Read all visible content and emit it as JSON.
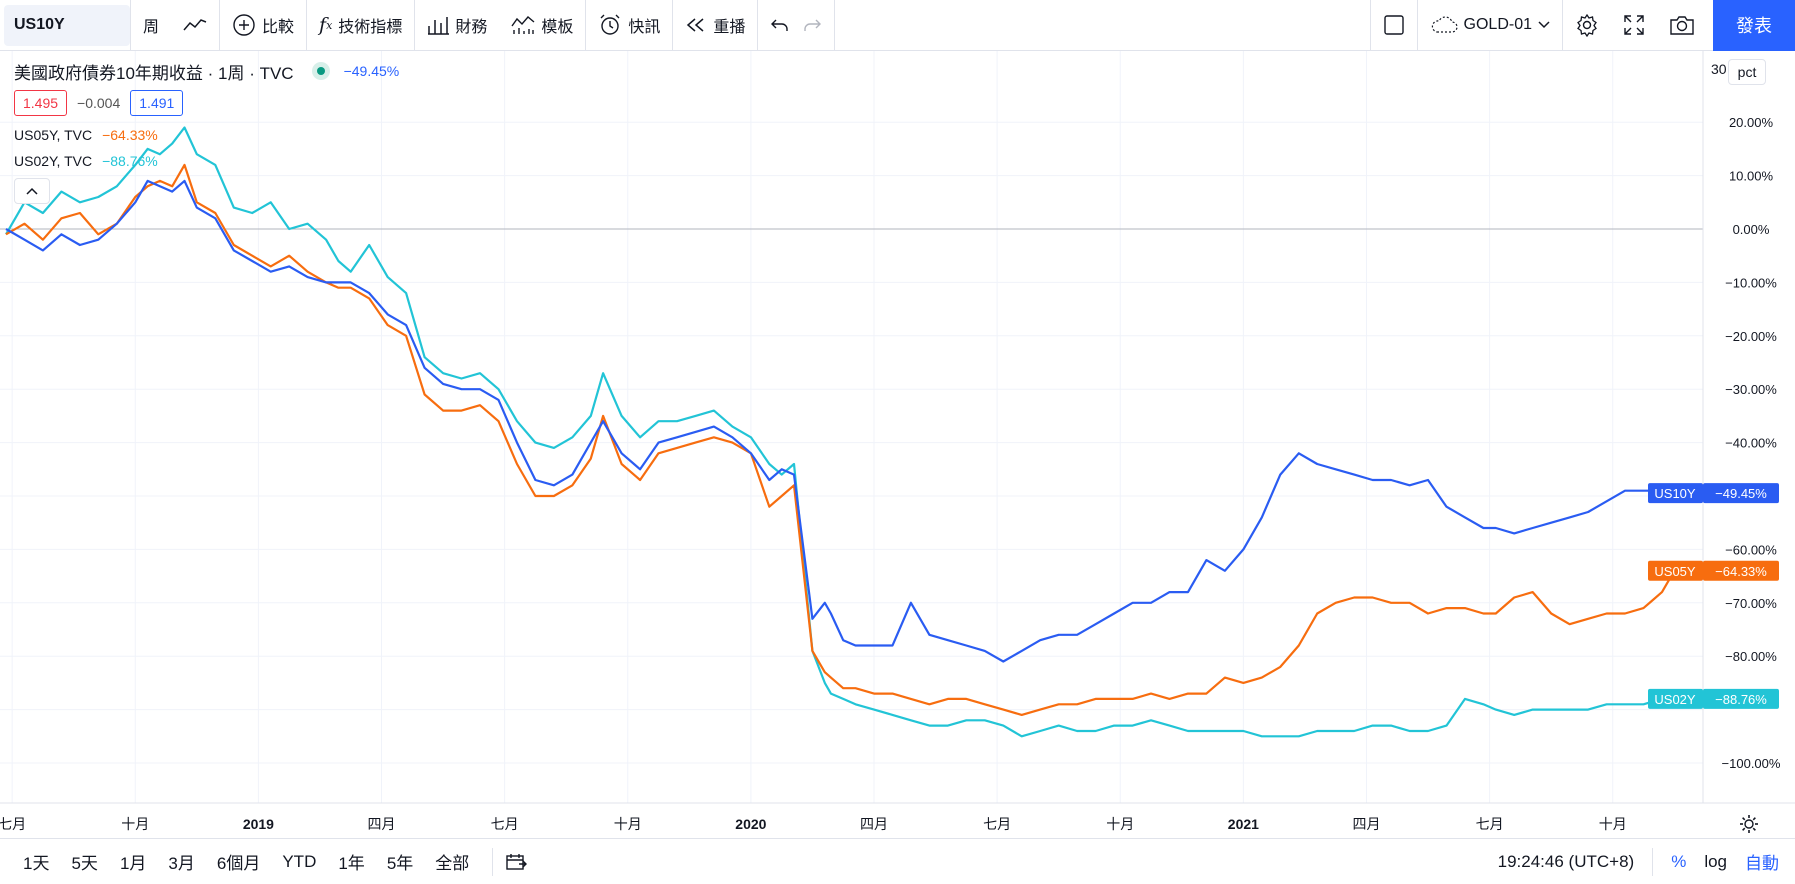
{
  "toolbar": {
    "symbol": "US10Y",
    "interval": "周",
    "compare": "比較",
    "indicators": "技術指標",
    "financials": "財務",
    "templates": "模板",
    "alerts": "快訊",
    "replay": "重播",
    "layout_name": "GOLD-01",
    "publish": "發表"
  },
  "legend": {
    "title": "美國政府債券10年期收益 · 1周 · TVC",
    "change_pct": "−49.45%",
    "bid": "1.495",
    "spread": "−0.004",
    "ask": "1.491",
    "series2_name": "US05Y, TVC",
    "series2_pct": "−64.33%",
    "series3_name": "US02Y, TVC",
    "series3_pct": "−88.76%"
  },
  "axis": {
    "top_partial": "30",
    "mode_badge": "pct",
    "yticks": [
      {
        "v": 20,
        "label": "20.00%"
      },
      {
        "v": 10,
        "label": "10.00%"
      },
      {
        "v": 0,
        "label": "0.00%"
      },
      {
        "v": -10,
        "label": "−10.00%"
      },
      {
        "v": -20,
        "label": "−20.00%"
      },
      {
        "v": -30,
        "label": "−30.00%"
      },
      {
        "v": -40,
        "label": "−40.00%"
      },
      {
        "v": -60,
        "label": "−60.00%"
      },
      {
        "v": -70,
        "label": "−70.00%"
      },
      {
        "v": -80,
        "label": "−80.00%"
      },
      {
        "v": -100,
        "label": "−100.00%"
      }
    ],
    "xticks": [
      {
        "t": 0.35,
        "label": "七月"
      },
      {
        "t": 1.35,
        "label": "十月",
        "bold": false
      },
      {
        "t": 2.35,
        "label": "2019",
        "bold": true
      },
      {
        "t": 3.35,
        "label": "四月"
      },
      {
        "t": 4.35,
        "label": "七月"
      },
      {
        "t": 5.35,
        "label": "十月"
      },
      {
        "t": 6.35,
        "label": "2020",
        "bold": true
      },
      {
        "t": 7.35,
        "label": "四月"
      },
      {
        "t": 8.35,
        "label": "七月"
      },
      {
        "t": 9.35,
        "label": "十月"
      },
      {
        "t": 10.35,
        "label": "2021",
        "bold": true
      },
      {
        "t": 11.35,
        "label": "四月"
      },
      {
        "t": 12.35,
        "label": "七月"
      },
      {
        "t": 13.35,
        "label": "十月"
      }
    ]
  },
  "chart_data": {
    "type": "line",
    "ylabel": "",
    "xlabel": "",
    "ylim": [
      -107,
      30
    ],
    "xlim": [
      0.3,
      14.4
    ],
    "grid": true,
    "series": [
      {
        "name": "US02Y",
        "color": "#22c4d6",
        "end_label": "−88.76%",
        "x": [
          0.3,
          0.45,
          0.6,
          0.75,
          0.9,
          1.05,
          1.2,
          1.35,
          1.45,
          1.55,
          1.65,
          1.75,
          1.85,
          2.0,
          2.15,
          2.3,
          2.45,
          2.6,
          2.75,
          2.9,
          3.0,
          3.1,
          3.25,
          3.4,
          3.55,
          3.7,
          3.85,
          4.0,
          4.15,
          4.3,
          4.45,
          4.6,
          4.75,
          4.9,
          5.05,
          5.15,
          5.3,
          5.45,
          5.6,
          5.75,
          5.9,
          6.05,
          6.2,
          6.35,
          6.5,
          6.6,
          6.7,
          6.85,
          6.95,
          7.0,
          7.1,
          7.2,
          7.35,
          7.5,
          7.65,
          7.8,
          7.95,
          8.1,
          8.25,
          8.4,
          8.55,
          8.7,
          8.85,
          9.0,
          9.15,
          9.3,
          9.45,
          9.6,
          9.75,
          9.9,
          10.05,
          10.2,
          10.35,
          10.5,
          10.65,
          10.8,
          10.95,
          11.1,
          11.25,
          11.4,
          11.55,
          11.7,
          11.85,
          12.0,
          12.15,
          12.3,
          12.4,
          12.55,
          12.7,
          12.85,
          13.0,
          13.15,
          13.3,
          13.45,
          13.6,
          13.75,
          13.85
        ],
        "y": [
          -1,
          5,
          3,
          7,
          5,
          6,
          8,
          12,
          15,
          14,
          16,
          19,
          14,
          12,
          4,
          3,
          5,
          0,
          1,
          -2,
          -6,
          -8,
          -3,
          -9,
          -12,
          -24,
          -27,
          -28,
          -27,
          -30,
          -36,
          -40,
          -41,
          -39,
          -35,
          -27,
          -35,
          -39,
          -36,
          -36,
          -35,
          -34,
          -37,
          -39,
          -44,
          -46,
          -44,
          -79,
          -85,
          -87,
          -88,
          -89,
          -90,
          -91,
          -92,
          -93,
          -93,
          -92,
          -92,
          -93,
          -95,
          -94,
          -93,
          -94,
          -94,
          -93,
          -93,
          -92,
          -93,
          -94,
          -94,
          -94,
          -94,
          -95,
          -95,
          -95,
          -94,
          -94,
          -94,
          -93,
          -93,
          -94,
          -94,
          -93,
          -88,
          -89,
          -90,
          -91,
          -90,
          -90,
          -90,
          -90,
          -89,
          -89,
          -89,
          -88,
          -88
        ]
      },
      {
        "name": "US05Y",
        "color": "#f76d0f",
        "end_label": "−64.33%",
        "x": [
          0.3,
          0.45,
          0.6,
          0.75,
          0.9,
          1.05,
          1.2,
          1.35,
          1.45,
          1.55,
          1.65,
          1.75,
          1.85,
          2.0,
          2.15,
          2.3,
          2.45,
          2.6,
          2.75,
          2.9,
          3.0,
          3.1,
          3.25,
          3.4,
          3.55,
          3.7,
          3.85,
          4.0,
          4.15,
          4.3,
          4.45,
          4.6,
          4.75,
          4.9,
          5.05,
          5.15,
          5.3,
          5.45,
          5.6,
          5.75,
          5.9,
          6.05,
          6.2,
          6.35,
          6.5,
          6.6,
          6.7,
          6.85,
          6.95,
          7.0,
          7.1,
          7.2,
          7.35,
          7.5,
          7.65,
          7.8,
          7.95,
          8.1,
          8.25,
          8.4,
          8.55,
          8.7,
          8.85,
          9.0,
          9.15,
          9.3,
          9.45,
          9.6,
          9.75,
          9.9,
          10.05,
          10.2,
          10.35,
          10.5,
          10.65,
          10.8,
          10.95,
          11.1,
          11.25,
          11.4,
          11.55,
          11.7,
          11.85,
          12.0,
          12.15,
          12.3,
          12.4,
          12.55,
          12.7,
          12.85,
          13.0,
          13.15,
          13.3,
          13.45,
          13.6,
          13.75,
          13.85
        ],
        "y": [
          -1,
          1,
          -2,
          2,
          3,
          -1,
          1,
          6,
          8,
          9,
          8,
          12,
          5,
          3,
          -3,
          -5,
          -7,
          -5,
          -8,
          -10,
          -11,
          -11,
          -13,
          -18,
          -20,
          -31,
          -34,
          -34,
          -33,
          -36,
          -44,
          -50,
          -50,
          -48,
          -43,
          -35,
          -44,
          -47,
          -42,
          -41,
          -40,
          -39,
          -40,
          -42,
          -52,
          -50,
          -48,
          -79,
          -83,
          -84,
          -86,
          -86,
          -87,
          -87,
          -88,
          -89,
          -88,
          -88,
          -89,
          -90,
          -91,
          -90,
          -89,
          -89,
          -88,
          -88,
          -88,
          -87,
          -88,
          -87,
          -87,
          -84,
          -85,
          -84,
          -82,
          -78,
          -72,
          -70,
          -69,
          -69,
          -70,
          -70,
          -72,
          -71,
          -71,
          -72,
          -72,
          -69,
          -68,
          -72,
          -74,
          -73,
          -72,
          -72,
          -71,
          -68,
          -64
        ]
      },
      {
        "name": "US10Y",
        "color": "#2a5cf2",
        "end_label": "−49.45%",
        "x": [
          0.3,
          0.45,
          0.6,
          0.75,
          0.9,
          1.05,
          1.2,
          1.35,
          1.45,
          1.55,
          1.65,
          1.75,
          1.85,
          2.0,
          2.15,
          2.3,
          2.45,
          2.6,
          2.75,
          2.9,
          3.0,
          3.1,
          3.25,
          3.4,
          3.55,
          3.7,
          3.85,
          4.0,
          4.15,
          4.3,
          4.45,
          4.6,
          4.75,
          4.9,
          5.05,
          5.15,
          5.3,
          5.45,
          5.6,
          5.75,
          5.9,
          6.05,
          6.2,
          6.35,
          6.5,
          6.6,
          6.7,
          6.85,
          6.95,
          7.0,
          7.1,
          7.2,
          7.35,
          7.5,
          7.65,
          7.8,
          7.95,
          8.1,
          8.25,
          8.4,
          8.55,
          8.7,
          8.85,
          9.0,
          9.15,
          9.3,
          9.45,
          9.6,
          9.75,
          9.9,
          10.05,
          10.2,
          10.35,
          10.5,
          10.65,
          10.8,
          10.95,
          11.1,
          11.25,
          11.4,
          11.55,
          11.7,
          11.85,
          12.0,
          12.15,
          12.3,
          12.4,
          12.55,
          12.7,
          12.85,
          13.0,
          13.15,
          13.3,
          13.45,
          13.6,
          13.75,
          13.85
        ],
        "y": [
          0,
          -2,
          -4,
          -1,
          -3,
          -2,
          1,
          5,
          9,
          8,
          7,
          9,
          4,
          2,
          -4,
          -6,
          -8,
          -7,
          -9,
          -10,
          -10,
          -10,
          -12,
          -16,
          -18,
          -26,
          -29,
          -30,
          -30,
          -32,
          -40,
          -47,
          -48,
          -46,
          -40,
          -36,
          -42,
          -45,
          -40,
          -39,
          -38,
          -37,
          -39,
          -42,
          -47,
          -45,
          -46,
          -73,
          -70,
          -72,
          -77,
          -78,
          -78,
          -78,
          -70,
          -76,
          -77,
          -78,
          -79,
          -81,
          -79,
          -77,
          -76,
          -76,
          -74,
          -72,
          -70,
          -70,
          -68,
          -68,
          -62,
          -64,
          -60,
          -54,
          -46,
          -42,
          -44,
          -45,
          -46,
          -47,
          -47,
          -48,
          -47,
          -52,
          -54,
          -56,
          -56,
          -57,
          -56,
          -55,
          -54,
          -53,
          -51,
          -49,
          -49,
          -49,
          -49.45
        ]
      }
    ]
  },
  "bottom": {
    "ranges": [
      "1天",
      "5天",
      "1月",
      "3月",
      "6個月",
      "YTD",
      "1年",
      "5年",
      "全部"
    ],
    "clock": "19:24:46 (UTC+8)",
    "pct": "%",
    "log": "log",
    "auto": "自動"
  }
}
